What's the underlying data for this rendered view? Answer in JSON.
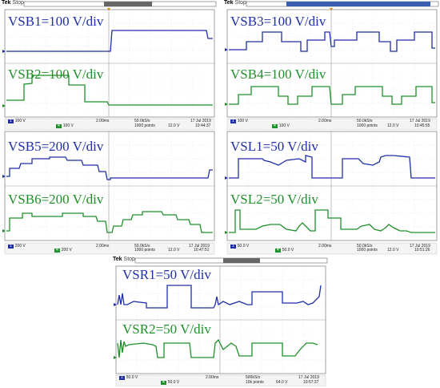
{
  "scopes": [
    {
      "tek": "Tek",
      "run_state": "Stop",
      "ch1_label": "VSB1=100 V/div",
      "ch2_label": "VSB2=100 V/div",
      "ch1_scale": "100 V",
      "ch4_scale": "100 V",
      "timebase": "2.00ms",
      "sample_rate": "50.0kS/s",
      "points": "1000 points",
      "trigger_level": "12.0 V",
      "date": "17 Jul 2019",
      "time": "10:44:37"
    },
    {
      "tek": "Tek",
      "run_state": "Stop",
      "ch1_label": "VSB3=100 V/div",
      "ch2_label": "VSB4=100 V/div",
      "ch1_scale": "100 V",
      "ch4_scale": "100 V",
      "timebase": "2.00ms",
      "sample_rate": "50.0kS/s",
      "points": "1000 points",
      "trigger_level": "12.0 V",
      "date": "17 Jul 2019",
      "time": "10:45:55"
    },
    {
      "tek": "",
      "run_state": "",
      "ch1_label": "VSB5=200 V/div",
      "ch2_label": "VSB6=200 V/div",
      "ch1_scale": "200 V",
      "ch4_scale": "200 V",
      "timebase": "2.00ms",
      "sample_rate": "50.0kS/s",
      "points": "1000 points",
      "trigger_level": "12.0 V",
      "date": "17 Jul 2019",
      "time": "10:47:51"
    },
    {
      "tek": "",
      "run_state": "",
      "ch1_label": "VSL1=50 V/div",
      "ch2_label": "VSL2=50 V/div",
      "ch1_scale": "50.0 V",
      "ch4_scale": "50.0 V",
      "timebase": "2.00ms",
      "sample_rate": "50.0kS/s",
      "points": "1000 points",
      "trigger_level": "12.0 V",
      "date": "17 Jul 2019",
      "time": "10:51:26"
    },
    {
      "tek": "Tek",
      "run_state": "Stop",
      "ch1_label": "VSR1=50 V/div",
      "ch2_label": "VSR2=50 V/div",
      "ch1_scale": "50.0 V",
      "ch4_scale": "50.0 V",
      "timebase": "2.00ms",
      "sample_rate": "500kS/s",
      "points": "10k points",
      "trigger_level": "64.0 V",
      "date": "17 Jul 2019",
      "time": "10:57:27"
    }
  ],
  "colors": {
    "ch1": "#1f2fa8",
    "ch4": "#1f8f2a",
    "grid": "#cfcfcf",
    "trigger": "#e08a00"
  },
  "icons": [
    "ch1-marker-icon",
    "ch4-marker-icon",
    "trigger-marker-icon"
  ]
}
